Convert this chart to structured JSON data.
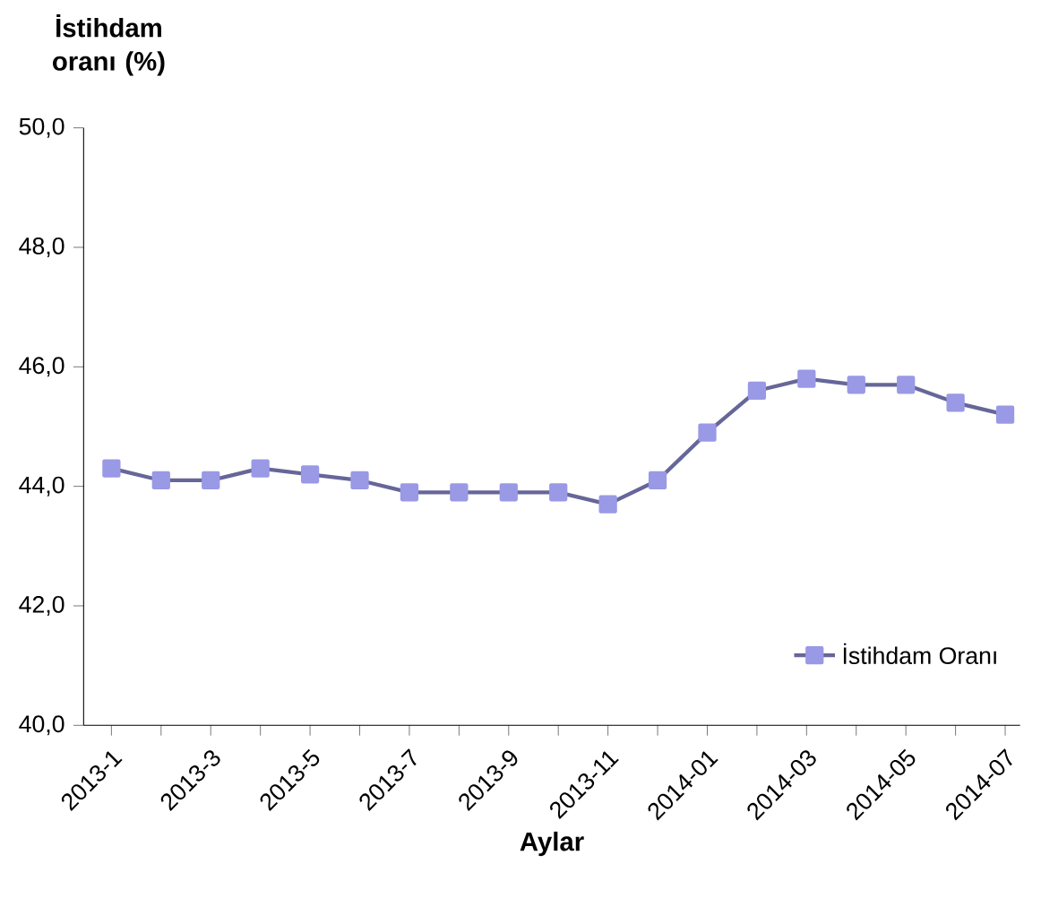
{
  "chart_data": {
    "type": "line",
    "ylabel": "İstihdam oranı (%)",
    "xlabel": "Aylar",
    "categories": [
      "2013-1",
      null,
      "2013-3",
      null,
      "2013-5",
      null,
      "2013-7",
      null,
      "2013-9",
      null,
      "2013-11",
      null,
      "2014-01",
      null,
      "2014-03",
      null,
      "2014-05",
      null,
      "2014-07"
    ],
    "series": [
      {
        "name": "İstihdam Oranı",
        "color": "#9999e6",
        "values": [
          44.3,
          44.1,
          44.1,
          44.3,
          44.2,
          44.1,
          43.9,
          43.9,
          43.9,
          43.9,
          43.7,
          44.1,
          44.9,
          45.6,
          45.8,
          45.7,
          45.7,
          45.4,
          45.2
        ]
      }
    ],
    "ylim": [
      40,
      50
    ],
    "yticks": [
      {
        "value": 40,
        "label": "40,0"
      },
      {
        "value": 42,
        "label": "42,0"
      },
      {
        "value": 44,
        "label": "44,0"
      },
      {
        "value": 46,
        "label": "46,0"
      },
      {
        "value": 48,
        "label": "48,0"
      },
      {
        "value": 50,
        "label": "50,0"
      }
    ],
    "legend": "bottom right",
    "marker": "square",
    "line_style": "solid",
    "grid": false
  }
}
